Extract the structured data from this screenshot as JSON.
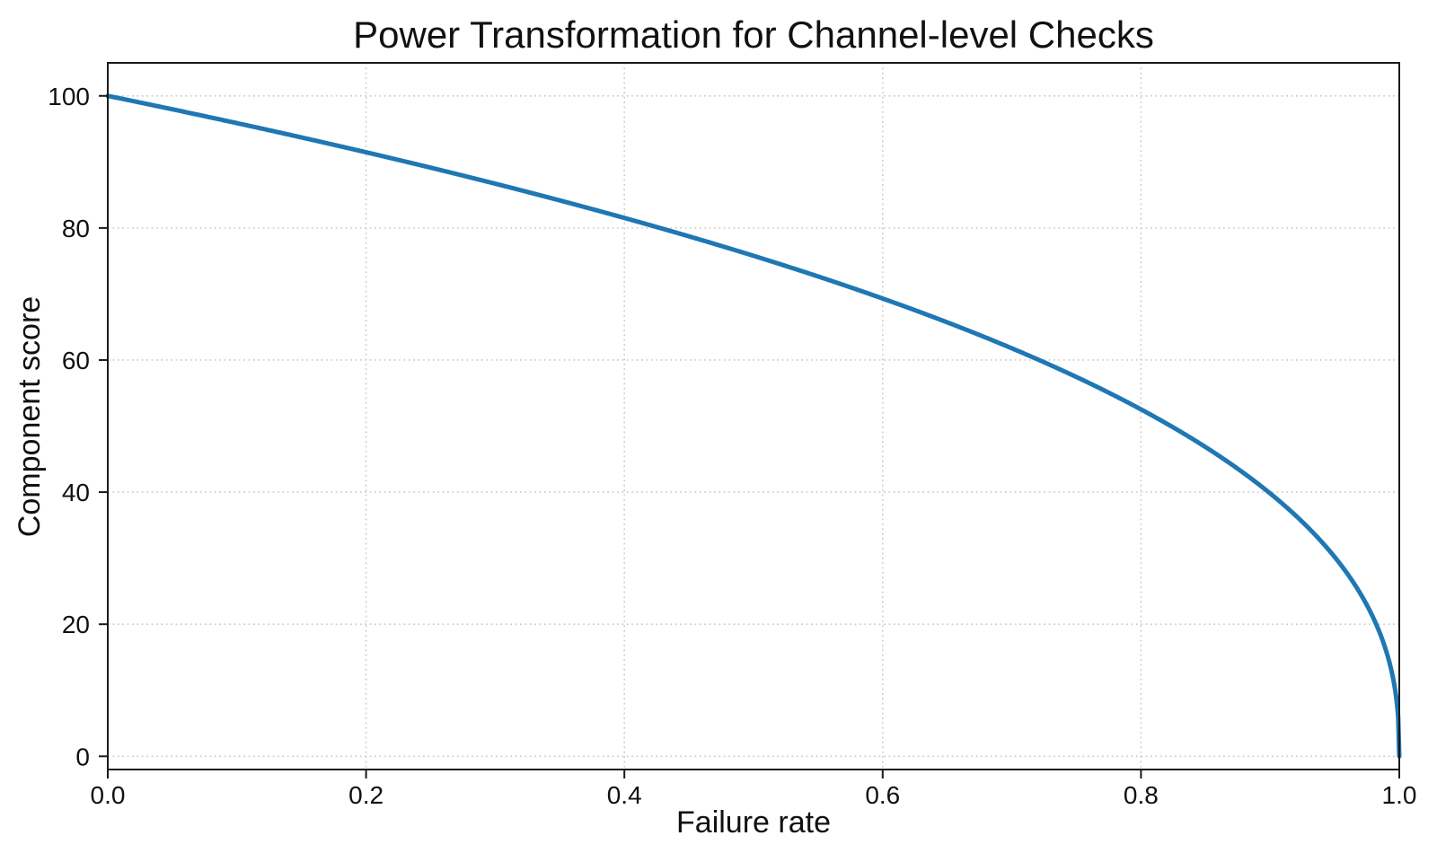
{
  "page": {
    "background_color": "#ffffff",
    "text_color": "#111111"
  },
  "chart_data": {
    "type": "line",
    "title": "Power Transformation for Channel-level Checks",
    "xlabel": "Failure rate",
    "ylabel": "Component score",
    "xlim": [
      0,
      1
    ],
    "ylim": [
      -2,
      105
    ],
    "x_tick_values": [
      0.0,
      0.2,
      0.4,
      0.6,
      0.8,
      1.0
    ],
    "x_tick_labels": [
      "0.0",
      "0.2",
      "0.4",
      "0.6",
      "0.8",
      "1.0"
    ],
    "y_tick_values": [
      0,
      20,
      40,
      60,
      80,
      100
    ],
    "y_tick_labels": [
      "0",
      "20",
      "40",
      "60",
      "80",
      "100"
    ],
    "grid": {
      "visible": true,
      "style": "dotted",
      "color": "#cccccc"
    },
    "legend": {
      "visible": false
    },
    "spine_color": "#1a1a1a",
    "line_color": "#1f77b4",
    "line_width": 5,
    "curve_function": {
      "type": "power",
      "formula": "score = 100 * (1 - failure_rate)^0.4",
      "scale": 100,
      "power": 0.4
    },
    "series": [
      {
        "name": "component_score",
        "x": [
          0.0,
          0.05,
          0.1,
          0.15,
          0.2,
          0.25,
          0.3,
          0.35,
          0.4,
          0.45,
          0.5,
          0.55,
          0.6,
          0.65,
          0.7,
          0.75,
          0.8,
          0.85,
          0.9,
          0.92,
          0.94,
          0.96,
          0.98,
          0.99,
          0.995,
          0.999,
          1.0
        ],
        "y": [
          100.0,
          97.97,
          95.87,
          93.71,
          91.46,
          89.13,
          86.7,
          84.17,
          81.52,
          78.73,
          75.79,
          72.66,
          69.31,
          65.71,
          61.78,
          57.43,
          52.53,
          46.82,
          39.81,
          36.41,
          32.45,
          27.6,
          20.91,
          15.85,
          12.0,
          6.31,
          0.0
        ]
      }
    ]
  }
}
